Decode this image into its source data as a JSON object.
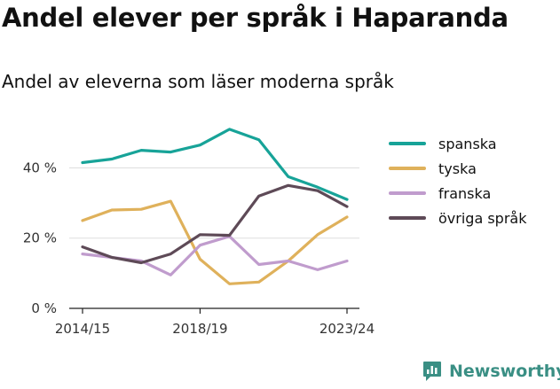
{
  "title": "Andel elever per språk i Haparanda",
  "subtitle": "Andel av eleverna som läser moderna språk",
  "brand": {
    "name": "Newsworthy",
    "logo_icon": "bar-chart-speech-bubble-icon",
    "color": "#3a8f84"
  },
  "chart_data": {
    "type": "line",
    "x": [
      "2014/15",
      "2015/16",
      "2016/17",
      "2017/18",
      "2018/19",
      "2019/20",
      "2020/21",
      "2021/22",
      "2022/23",
      "2023/24"
    ],
    "x_tick_labels": [
      "2014/15",
      "2018/19",
      "2023/24"
    ],
    "y_ticks": [
      0,
      20,
      40
    ],
    "y_tick_labels": [
      "0 %",
      "20 %",
      "40 %"
    ],
    "ylim": [
      0,
      55
    ],
    "grid": true,
    "legend_position": "right",
    "series": [
      {
        "name": "spanska",
        "color": "#17a398",
        "values": [
          41.5,
          42.5,
          45,
          44.5,
          46.5,
          51,
          48,
          37.5,
          34.5,
          31
        ]
      },
      {
        "name": "tyska",
        "color": "#dfb15b",
        "values": [
          25,
          28,
          28.2,
          30.5,
          14,
          7,
          7.5,
          13.5,
          21,
          26
        ]
      },
      {
        "name": "franska",
        "color": "#c09ccd",
        "values": [
          15.5,
          14.5,
          13.5,
          9.5,
          18,
          20.5,
          12.5,
          13.5,
          11,
          13.5
        ]
      },
      {
        "name": "övriga språk",
        "color": "#5e4a57",
        "values": [
          17.5,
          14.5,
          13,
          15.5,
          21,
          20.8,
          32,
          35,
          33.5,
          29
        ]
      }
    ]
  }
}
